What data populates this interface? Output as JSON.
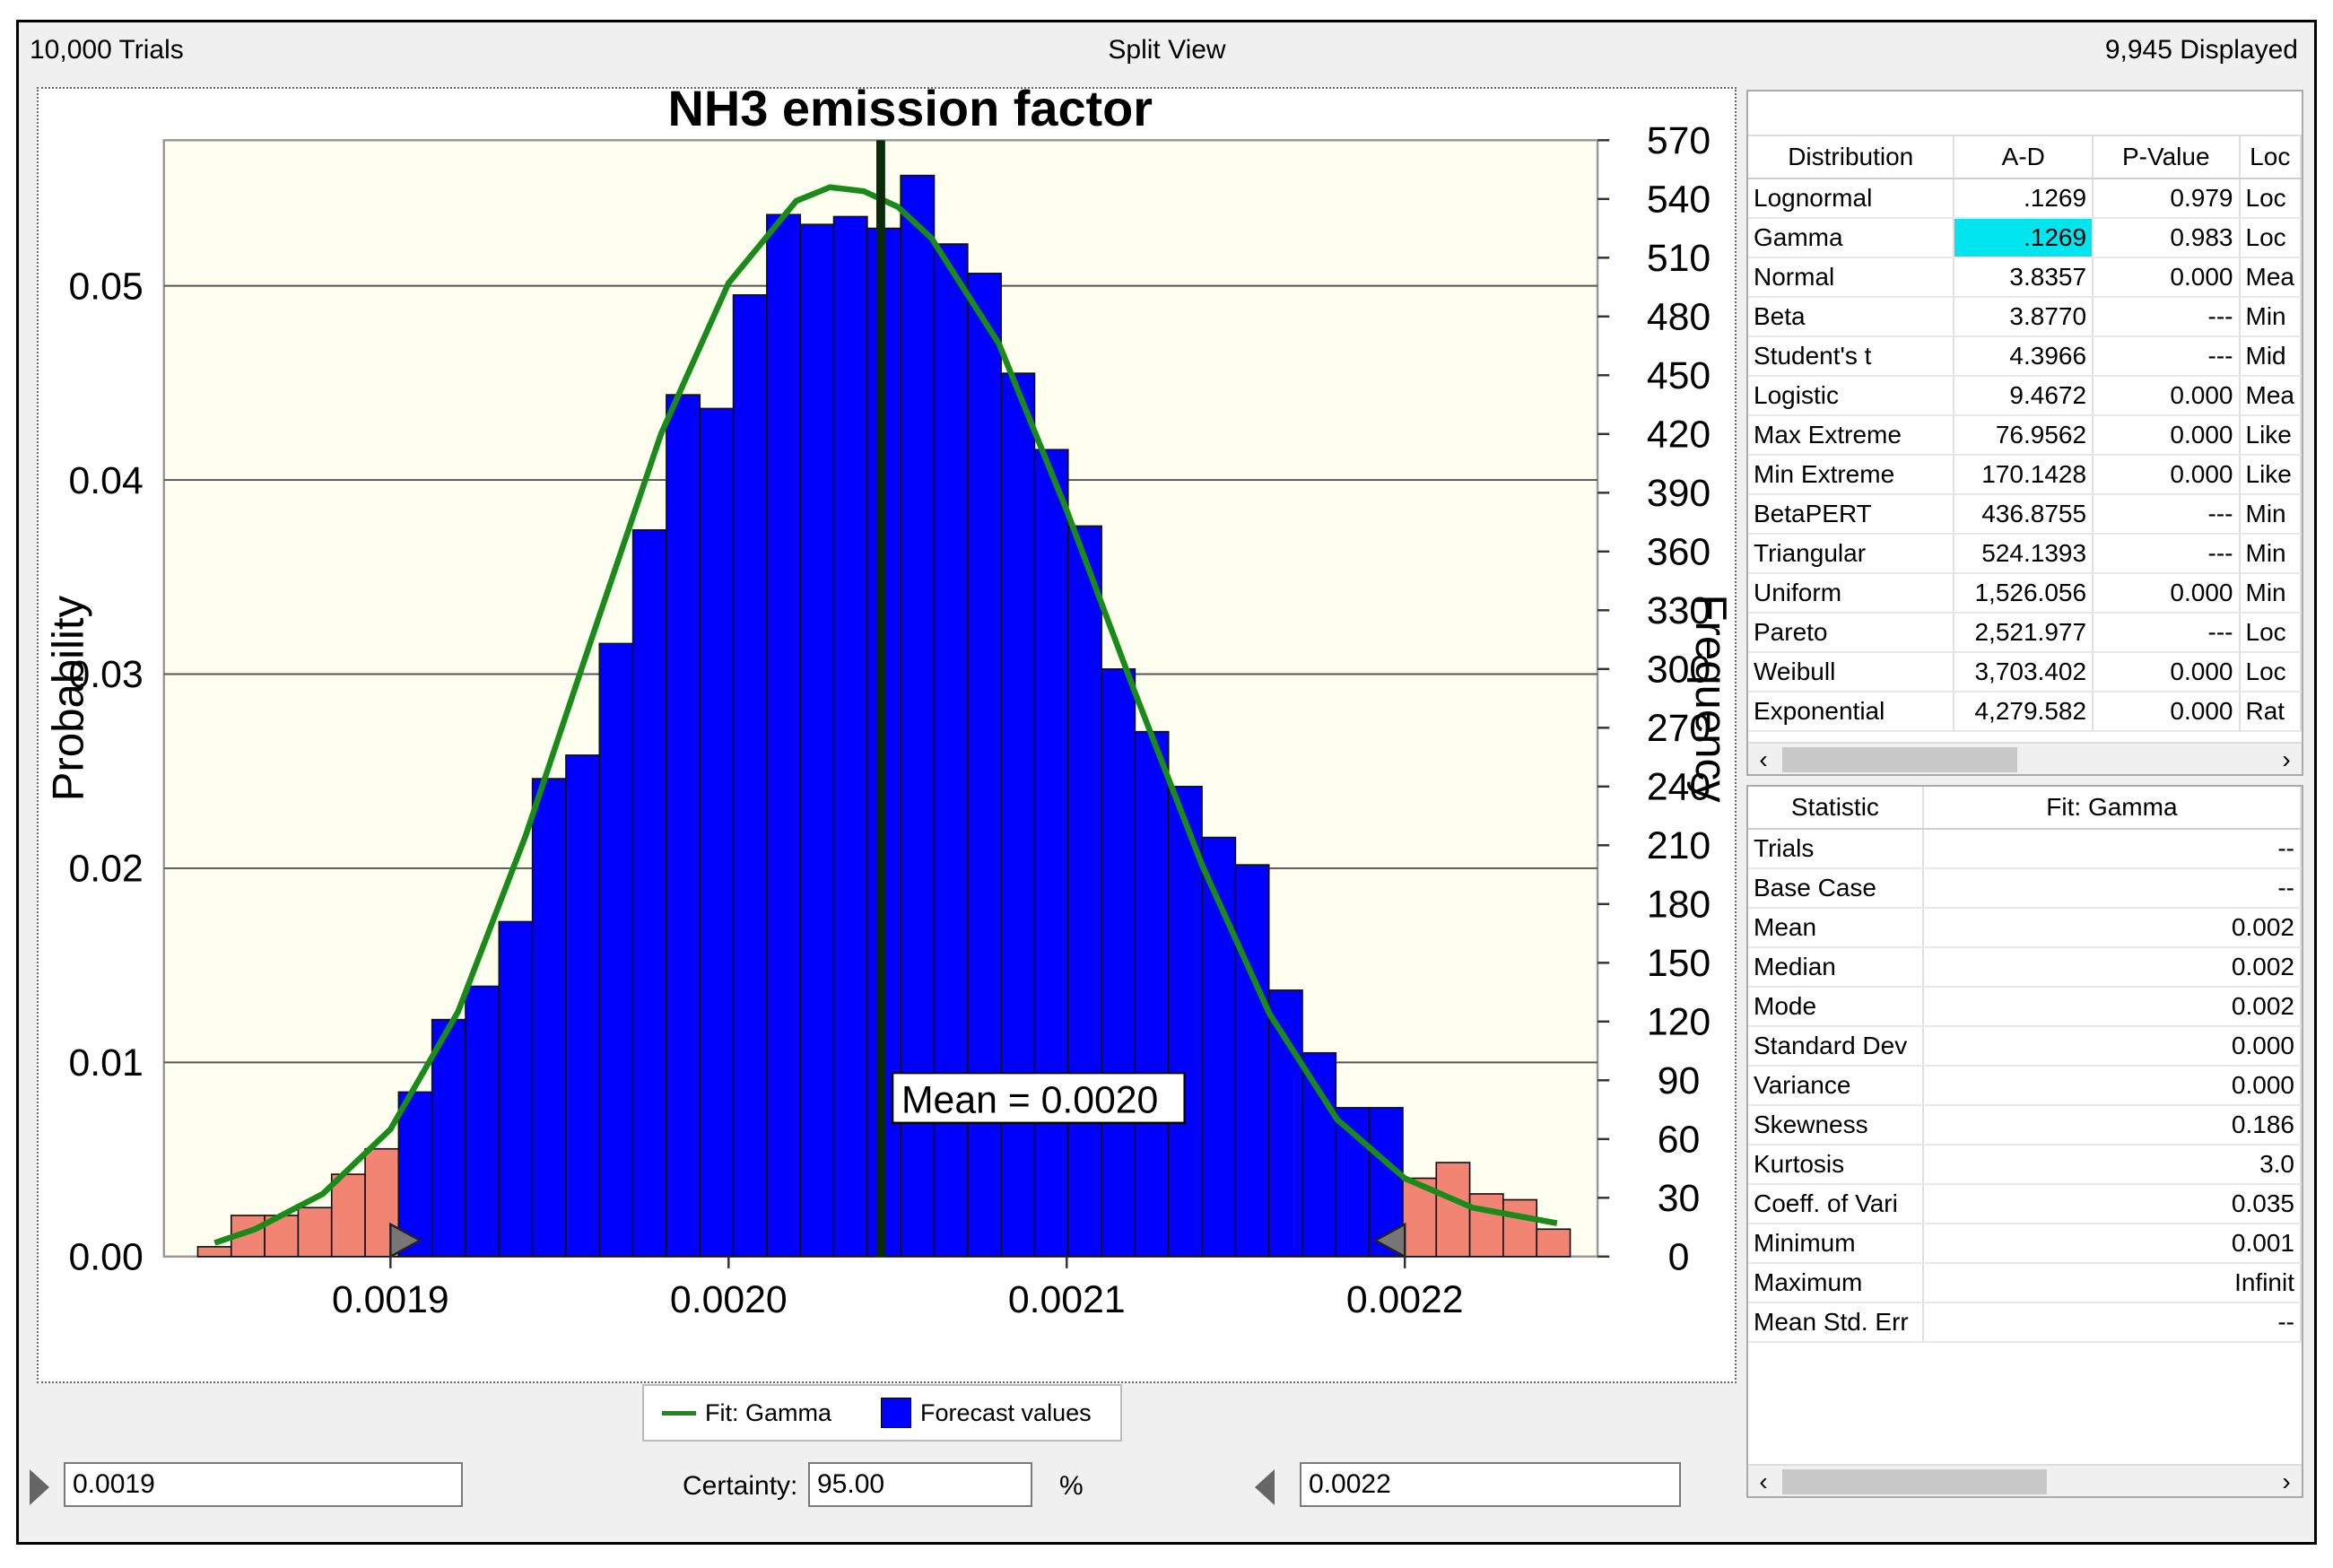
{
  "header": {
    "trials": "10,000 Trials",
    "view": "Split View",
    "displayed": "9,945 Displayed"
  },
  "chart_data": {
    "type": "bar",
    "title": "NH3 emission factor",
    "ylabel": "Probability",
    "y2label": "Frequency",
    "x_ticks": [
      "0.0019",
      "0.0020",
      "0.0021",
      "0.0022"
    ],
    "x_tick_values": [
      0.0019,
      0.002,
      0.0021,
      0.0022
    ],
    "xlim": [
      0.001833,
      0.002257
    ],
    "y_ticks": [
      "0.00",
      "0.01",
      "0.02",
      "0.03",
      "0.04",
      "0.05"
    ],
    "ylim": [
      0,
      0.0575
    ],
    "y2_ticks": [
      "0",
      "30",
      "60",
      "90",
      "120",
      "150",
      "180",
      "210",
      "240",
      "270",
      "300",
      "330",
      "360",
      "390",
      "420",
      "450",
      "480",
      "510",
      "540",
      "570"
    ],
    "y2lim": [
      0,
      570
    ],
    "bin_start": 0.001843,
    "bin_width": 9.9e-06,
    "frequencies": [
      5,
      21,
      21,
      25,
      42,
      55,
      84,
      121,
      138,
      171,
      244,
      256,
      313,
      371,
      440,
      433,
      491,
      532,
      527,
      531,
      525,
      552,
      517,
      502,
      451,
      412,
      373,
      300,
      268,
      240,
      214,
      200,
      136,
      104,
      76,
      76,
      40,
      48,
      32,
      29,
      14
    ],
    "lower_bound": 0.0019,
    "upper_bound": 0.0022,
    "mean_value": 0.002,
    "mean_label": "Mean = 0.0020",
    "fit_curve": {
      "name": "Fit: Gamma",
      "x": [
        0.001848,
        0.00186,
        0.00188,
        0.0019,
        0.00192,
        0.00194,
        0.00196,
        0.00198,
        0.002,
        0.00202,
        0.00203,
        0.00204,
        0.00205,
        0.00206,
        0.00208,
        0.0021,
        0.00212,
        0.00214,
        0.00216,
        0.00218,
        0.0022,
        0.00222,
        0.002245
      ],
      "freq": [
        7,
        14,
        32,
        65,
        125,
        215,
        318,
        420,
        497,
        539,
        546,
        544,
        536,
        520,
        466,
        381,
        289,
        200,
        124,
        70,
        40,
        25,
        17
      ]
    },
    "series": [
      {
        "name": "Fit: Gamma",
        "color": "#1a8a1a"
      },
      {
        "name": "Forecast values",
        "color": "#0000ff"
      }
    ],
    "tail_color": "#f28473"
  },
  "fit_table": {
    "headers": [
      "Distribution",
      "A-D",
      "P-Value",
      "Loc"
    ],
    "rows": [
      [
        "Lognormal",
        ".1269",
        "0.979",
        "Loc"
      ],
      [
        "Gamma",
        ".1269",
        "0.983",
        "Loc"
      ],
      [
        "Normal",
        "3.8357",
        "0.000",
        "Mea"
      ],
      [
        "Beta",
        "3.8770",
        "---",
        "Min"
      ],
      [
        "Student's t",
        "4.3966",
        "---",
        "Mid"
      ],
      [
        "Logistic",
        "9.4672",
        "0.000",
        "Mea"
      ],
      [
        "Max Extreme",
        "76.9562",
        "0.000",
        "Like"
      ],
      [
        "Min Extreme",
        "170.1428",
        "0.000",
        "Like"
      ],
      [
        "BetaPERT",
        "436.8755",
        "---",
        "Min"
      ],
      [
        "Triangular",
        "524.1393",
        "---",
        "Min"
      ],
      [
        "Uniform",
        "1,526.056",
        "0.000",
        "Min"
      ],
      [
        "Pareto",
        "2,521.977",
        "---",
        "Loc"
      ],
      [
        "Weibull",
        "3,703.402",
        "0.000",
        "Loc"
      ],
      [
        "Exponential",
        "4,279.582",
        "0.000",
        "Rat"
      ]
    ],
    "highlight": {
      "row": 1,
      "col": 1
    }
  },
  "stats_table": {
    "headers": [
      "Statistic",
      "Fit: Gamma"
    ],
    "rows": [
      [
        "Trials",
        "--"
      ],
      [
        "Base Case",
        "--"
      ],
      [
        "Mean",
        "0.002"
      ],
      [
        "Median",
        "0.002"
      ],
      [
        "Mode",
        "0.002"
      ],
      [
        "Standard Dev",
        "0.000"
      ],
      [
        "Variance",
        "0.000"
      ],
      [
        "Skewness",
        "0.186"
      ],
      [
        "Kurtosis",
        "3.0"
      ],
      [
        "Coeff. of Vari",
        "0.035"
      ],
      [
        "Minimum",
        "0.001"
      ],
      [
        "Maximum",
        "Infinit"
      ],
      [
        "Mean Std. Err",
        "--"
      ]
    ]
  },
  "bottom": {
    "lower_value": "0.0019",
    "certainty_label": "Certainty:",
    "certainty_value": "95.00",
    "percent": "%",
    "upper_value": "0.0022"
  },
  "icons": {
    "scroll_left": "‹",
    "scroll_right": "›"
  }
}
